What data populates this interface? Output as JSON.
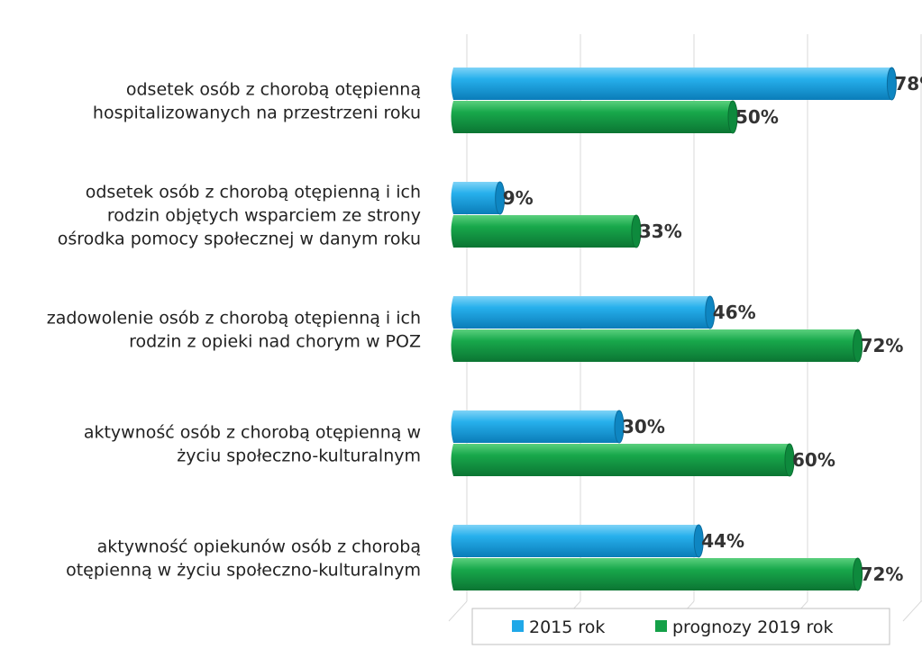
{
  "chart_data": {
    "type": "bar",
    "orientation": "horizontal",
    "categories": [
      [
        "odsetek osób z chorobą otępienną",
        "hospitalizowanych na przestrzeni roku"
      ],
      [
        "odsetek osób z chorobą otępienną i ich",
        "rodzin objętych wsparciem ze strony",
        "ośrodka pomocy społecznej w danym roku"
      ],
      [
        "zadowolenie osób z chorobą otępienną i ich",
        "rodzin z opieki nad chorym w POZ"
      ],
      [
        "aktywność osób z chorobą otępienną w",
        "życiu społeczno-kulturalnym"
      ],
      [
        "aktywność opiekunów osób z chorobą",
        "otępienną w życiu społeczno-kulturalnym"
      ]
    ],
    "series": [
      {
        "name": "2015 rok",
        "values": [
          78,
          9,
          46,
          30,
          44
        ],
        "color": "#1FA8E8"
      },
      {
        "name": "prognozy 2019 rok",
        "values": [
          50,
          33,
          72,
          60,
          72
        ],
        "color": "#14A048"
      }
    ],
    "value_suffix": "%",
    "xlim": [
      0,
      80
    ],
    "grid": true,
    "legend_position": "bottom"
  }
}
